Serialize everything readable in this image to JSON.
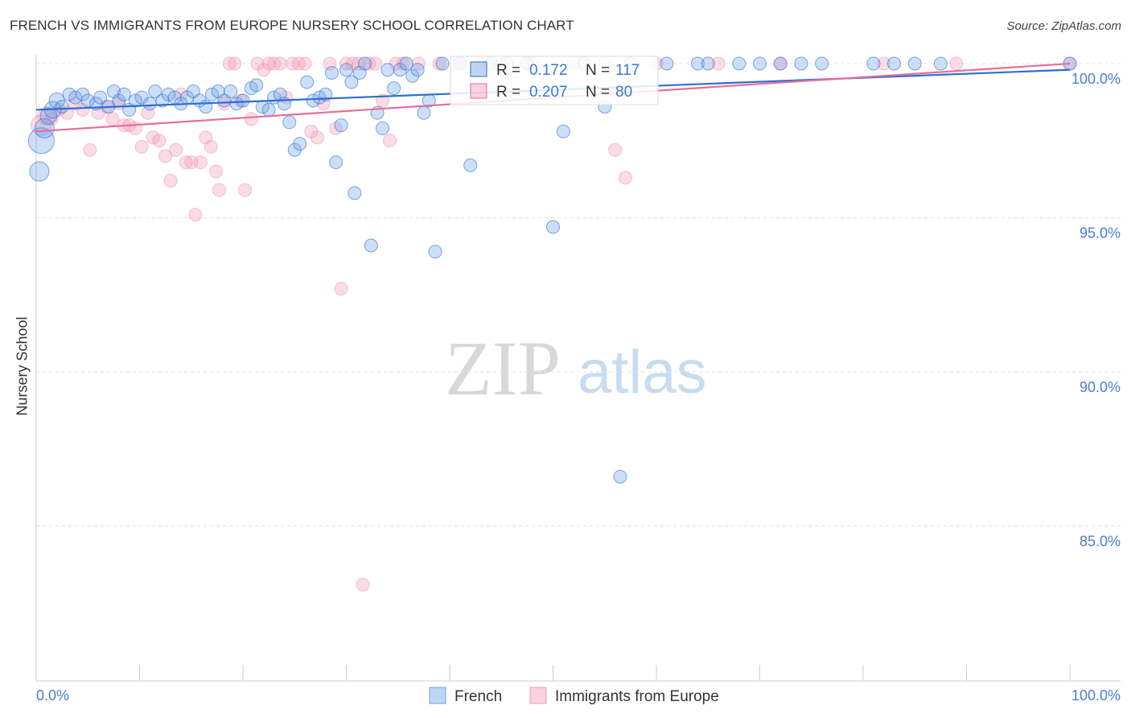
{
  "title": "FRENCH VS IMMIGRANTS FROM EUROPE NURSERY SCHOOL CORRELATION CHART",
  "source": "Source: ZipAtlas.com",
  "watermark": {
    "zip": "ZIP",
    "atlas": "atlas"
  },
  "colors": {
    "french": "#6fa3e8",
    "immigrants": "#f29bb8",
    "french_line": "#2f6fd0",
    "immigrants_line": "#e66f9a",
    "grid": "#e3e3e3",
    "tick": "#4a7fd0"
  },
  "chart_data": {
    "type": "scatter",
    "title": "FRENCH VS IMMIGRANTS FROM EUROPE NURSERY SCHOOL CORRELATION CHART",
    "xlabel": "",
    "ylabel": "Nursery School",
    "xlim": [
      0,
      100
    ],
    "ylim": [
      80.4,
      100.7
    ],
    "x_tick_labels": [
      {
        "value": 0,
        "label": "0.0%"
      },
      {
        "value": 100,
        "label": "100.0%"
      }
    ],
    "y_tick_labels": [
      {
        "value": 100,
        "label": "100.0%"
      },
      {
        "value": 95,
        "label": "95.0%"
      },
      {
        "value": 90,
        "label": "90.0%"
      },
      {
        "value": 85,
        "label": "85.0%"
      }
    ],
    "legend": [
      {
        "name": "French",
        "color": "#6fa3e8"
      },
      {
        "name": "Immigrants from Europe",
        "color": "#f29bb8"
      }
    ],
    "stats": [
      {
        "series": "French",
        "r_label": "R =",
        "r": "0.172",
        "n_label": "N =",
        "n": "117"
      },
      {
        "series": "Immigrants from Europe",
        "r_label": "R =",
        "r": "0.207",
        "n_label": "N =",
        "n": "80"
      }
    ],
    "series": [
      {
        "name": "French",
        "trend": {
          "x": [
            0,
            100
          ],
          "y": [
            98.5,
            99.8
          ]
        },
        "points": [
          {
            "x": 0.5,
            "y": 97.5,
            "s": 2
          },
          {
            "x": 0.3,
            "y": 96.5,
            "s": 1.5
          },
          {
            "x": 0.8,
            "y": 97.9,
            "s": 1.5
          },
          {
            "x": 1.2,
            "y": 98.3,
            "s": 1.3
          },
          {
            "x": 1.6,
            "y": 98.5,
            "s": 1.3
          },
          {
            "x": 2.0,
            "y": 98.8,
            "s": 1.2
          },
          {
            "x": 2.5,
            "y": 98.6
          },
          {
            "x": 3.2,
            "y": 99.0
          },
          {
            "x": 3.8,
            "y": 98.9
          },
          {
            "x": 4.5,
            "y": 99.0
          },
          {
            "x": 5.0,
            "y": 98.8
          },
          {
            "x": 5.8,
            "y": 98.7
          },
          {
            "x": 6.2,
            "y": 98.9
          },
          {
            "x": 7.0,
            "y": 98.6
          },
          {
            "x": 7.5,
            "y": 99.1
          },
          {
            "x": 8.0,
            "y": 98.8
          },
          {
            "x": 8.5,
            "y": 99.0
          },
          {
            "x": 9.0,
            "y": 98.5
          },
          {
            "x": 9.6,
            "y": 98.8
          },
          {
            "x": 10.2,
            "y": 98.9
          },
          {
            "x": 11.0,
            "y": 98.7
          },
          {
            "x": 11.5,
            "y": 99.1
          },
          {
            "x": 12.2,
            "y": 98.8
          },
          {
            "x": 12.8,
            "y": 99.0
          },
          {
            "x": 13.4,
            "y": 98.9
          },
          {
            "x": 14.0,
            "y": 98.7
          },
          {
            "x": 14.6,
            "y": 98.9
          },
          {
            "x": 15.2,
            "y": 99.1
          },
          {
            "x": 15.8,
            "y": 98.8
          },
          {
            "x": 16.4,
            "y": 98.6
          },
          {
            "x": 17.0,
            "y": 99.0
          },
          {
            "x": 17.6,
            "y": 99.1
          },
          {
            "x": 18.2,
            "y": 98.8
          },
          {
            "x": 18.8,
            "y": 99.1
          },
          {
            "x": 19.4,
            "y": 98.7
          },
          {
            "x": 20.0,
            "y": 98.8
          },
          {
            "x": 20.8,
            "y": 99.2
          },
          {
            "x": 21.3,
            "y": 99.3
          },
          {
            "x": 21.9,
            "y": 98.6
          },
          {
            "x": 22.5,
            "y": 98.5
          },
          {
            "x": 23.0,
            "y": 98.9
          },
          {
            "x": 23.6,
            "y": 99.0
          },
          {
            "x": 24.0,
            "y": 98.7
          },
          {
            "x": 24.5,
            "y": 98.1
          },
          {
            "x": 25.0,
            "y": 97.2
          },
          {
            "x": 25.5,
            "y": 97.4
          },
          {
            "x": 26.2,
            "y": 99.4
          },
          {
            "x": 26.8,
            "y": 98.8
          },
          {
            "x": 27.4,
            "y": 98.9
          },
          {
            "x": 28.0,
            "y": 99.0
          },
          {
            "x": 28.6,
            "y": 99.7
          },
          {
            "x": 29.0,
            "y": 96.8
          },
          {
            "x": 29.5,
            "y": 98.0
          },
          {
            "x": 30.0,
            "y": 99.8
          },
          {
            "x": 30.5,
            "y": 99.4
          },
          {
            "x": 30.8,
            "y": 95.8
          },
          {
            "x": 31.3,
            "y": 99.7
          },
          {
            "x": 31.8,
            "y": 100.0
          },
          {
            "x": 32.4,
            "y": 94.1
          },
          {
            "x": 33.0,
            "y": 98.4
          },
          {
            "x": 33.5,
            "y": 97.9
          },
          {
            "x": 34.0,
            "y": 99.8
          },
          {
            "x": 34.6,
            "y": 99.2
          },
          {
            "x": 35.2,
            "y": 99.8
          },
          {
            "x": 35.8,
            "y": 100.0
          },
          {
            "x": 36.4,
            "y": 99.6
          },
          {
            "x": 36.9,
            "y": 99.8
          },
          {
            "x": 37.5,
            "y": 98.4
          },
          {
            "x": 38.0,
            "y": 98.8
          },
          {
            "x": 38.6,
            "y": 93.9
          },
          {
            "x": 39.3,
            "y": 100.0
          },
          {
            "x": 41.0,
            "y": 100.0
          },
          {
            "x": 42.0,
            "y": 96.7
          },
          {
            "x": 44.0,
            "y": 100.0
          },
          {
            "x": 45.5,
            "y": 100.0
          },
          {
            "x": 47.5,
            "y": 100.0
          },
          {
            "x": 50.0,
            "y": 94.7
          },
          {
            "x": 51.0,
            "y": 97.8
          },
          {
            "x": 53.0,
            "y": 100.0
          },
          {
            "x": 55.0,
            "y": 98.6
          },
          {
            "x": 56.5,
            "y": 86.6
          },
          {
            "x": 57.5,
            "y": 100.0
          },
          {
            "x": 61.0,
            "y": 100.0
          },
          {
            "x": 64.0,
            "y": 100.0
          },
          {
            "x": 65.0,
            "y": 100.0
          },
          {
            "x": 68.0,
            "y": 100.0
          },
          {
            "x": 70.0,
            "y": 100.0
          },
          {
            "x": 72.0,
            "y": 100.0
          },
          {
            "x": 74.0,
            "y": 100.0
          },
          {
            "x": 76.0,
            "y": 100.0
          },
          {
            "x": 81.0,
            "y": 100.0
          },
          {
            "x": 83.0,
            "y": 100.0
          },
          {
            "x": 85.0,
            "y": 100.0
          },
          {
            "x": 87.5,
            "y": 100.0
          },
          {
            "x": 100.0,
            "y": 100.0
          }
        ]
      },
      {
        "name": "Immigrants from Europe",
        "trend": {
          "x": [
            0,
            100
          ],
          "y": [
            97.8,
            100.0
          ]
        },
        "points": [
          {
            "x": 0.5,
            "y": 98.0,
            "s": 1.6
          },
          {
            "x": 1.0,
            "y": 98.3,
            "s": 1.4
          },
          {
            "x": 1.5,
            "y": 98.2
          },
          {
            "x": 2.2,
            "y": 98.5
          },
          {
            "x": 3.0,
            "y": 98.4
          },
          {
            "x": 3.8,
            "y": 98.7
          },
          {
            "x": 4.5,
            "y": 98.5
          },
          {
            "x": 5.2,
            "y": 97.2
          },
          {
            "x": 6.0,
            "y": 98.4
          },
          {
            "x": 6.8,
            "y": 98.6
          },
          {
            "x": 7.4,
            "y": 98.2
          },
          {
            "x": 8.0,
            "y": 98.7
          },
          {
            "x": 8.5,
            "y": 98.0
          },
          {
            "x": 9.0,
            "y": 98.0
          },
          {
            "x": 9.6,
            "y": 97.9
          },
          {
            "x": 10.2,
            "y": 97.3
          },
          {
            "x": 10.8,
            "y": 98.4
          },
          {
            "x": 11.3,
            "y": 97.6
          },
          {
            "x": 11.9,
            "y": 97.5
          },
          {
            "x": 12.5,
            "y": 97.0
          },
          {
            "x": 13.0,
            "y": 96.2
          },
          {
            "x": 13.5,
            "y": 97.2
          },
          {
            "x": 14.0,
            "y": 99.0
          },
          {
            "x": 14.5,
            "y": 96.8
          },
          {
            "x": 15.0,
            "y": 96.8
          },
          {
            "x": 15.4,
            "y": 95.1
          },
          {
            "x": 15.9,
            "y": 96.8
          },
          {
            "x": 16.4,
            "y": 97.6
          },
          {
            "x": 16.9,
            "y": 97.3
          },
          {
            "x": 17.4,
            "y": 96.5
          },
          {
            "x": 17.7,
            "y": 95.9
          },
          {
            "x": 18.2,
            "y": 98.7
          },
          {
            "x": 18.7,
            "y": 100.0
          },
          {
            "x": 19.2,
            "y": 100.0
          },
          {
            "x": 19.8,
            "y": 98.8
          },
          {
            "x": 20.2,
            "y": 95.9
          },
          {
            "x": 20.8,
            "y": 98.2
          },
          {
            "x": 21.4,
            "y": 100.0
          },
          {
            "x": 22.0,
            "y": 99.8
          },
          {
            "x": 22.5,
            "y": 100.0
          },
          {
            "x": 23.0,
            "y": 100.0
          },
          {
            "x": 23.6,
            "y": 100.0
          },
          {
            "x": 24.2,
            "y": 98.9
          },
          {
            "x": 24.8,
            "y": 100.0
          },
          {
            "x": 25.4,
            "y": 100.0
          },
          {
            "x": 26.0,
            "y": 100.0
          },
          {
            "x": 26.6,
            "y": 97.8
          },
          {
            "x": 27.2,
            "y": 97.6
          },
          {
            "x": 27.8,
            "y": 98.7
          },
          {
            "x": 28.4,
            "y": 100.0
          },
          {
            "x": 29.0,
            "y": 97.9
          },
          {
            "x": 29.5,
            "y": 92.7
          },
          {
            "x": 30.0,
            "y": 100.0
          },
          {
            "x": 30.6,
            "y": 100.0
          },
          {
            "x": 31.2,
            "y": 100.0
          },
          {
            "x": 31.6,
            "y": 83.1
          },
          {
            "x": 32.2,
            "y": 100.0
          },
          {
            "x": 32.8,
            "y": 100.0
          },
          {
            "x": 33.5,
            "y": 98.8
          },
          {
            "x": 34.2,
            "y": 97.5
          },
          {
            "x": 34.8,
            "y": 100.0
          },
          {
            "x": 35.5,
            "y": 100.0
          },
          {
            "x": 37.0,
            "y": 100.0
          },
          {
            "x": 39.0,
            "y": 100.0
          },
          {
            "x": 41.0,
            "y": 100.0
          },
          {
            "x": 43.0,
            "y": 100.0
          },
          {
            "x": 45.0,
            "y": 100.0
          },
          {
            "x": 48.0,
            "y": 100.0
          },
          {
            "x": 52.0,
            "y": 100.0
          },
          {
            "x": 55.0,
            "y": 100.0
          },
          {
            "x": 56.0,
            "y": 97.2
          },
          {
            "x": 57.0,
            "y": 96.3
          },
          {
            "x": 60.0,
            "y": 100.0
          },
          {
            "x": 66.0,
            "y": 100.0
          },
          {
            "x": 72.0,
            "y": 100.0
          },
          {
            "x": 82.0,
            "y": 100.0
          },
          {
            "x": 89.0,
            "y": 100.0
          },
          {
            "x": 100.0,
            "y": 100.0
          }
        ]
      }
    ]
  }
}
